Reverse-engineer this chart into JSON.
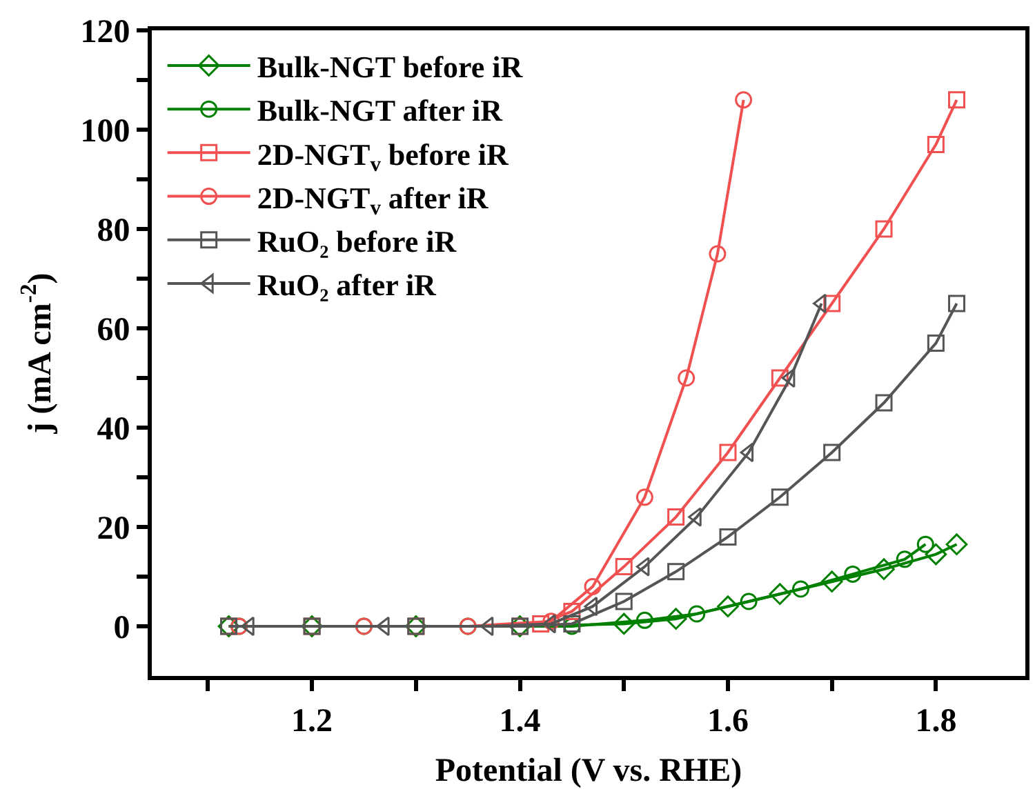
{
  "chart_data": {
    "type": "line",
    "xlabel": "Potential (V vs. RHE)",
    "ylabel": "j (mA cm$^{-2}$)",
    "xlim": [
      1.046,
      1.886
    ],
    "xticks": [
      {
        "value": 1.1,
        "label": null
      },
      1.2,
      {
        "value": 1.3,
        "label": null
      },
      1.4,
      {
        "value": 1.5,
        "label": null
      },
      1.6,
      {
        "value": 1.7,
        "label": null
      },
      1.8
    ],
    "ylim": [
      -10,
      120
    ],
    "yticks": [
      0,
      {
        "value": 10,
        "label": null
      },
      20,
      {
        "value": 30,
        "label": null
      },
      40,
      {
        "value": 50,
        "label": null
      },
      60,
      {
        "value": 70,
        "label": null
      },
      80,
      {
        "value": 90,
        "label": null
      },
      100,
      {
        "value": 110,
        "label": null
      },
      120
    ],
    "legend": "top left",
    "line_style": "solid",
    "series": [
      {
        "name": "Bulk-NGT before iR",
        "color": "#008000",
        "marker": "diamond",
        "x": [
          1.12,
          1.2,
          1.3,
          1.4,
          1.5,
          1.55,
          1.6,
          1.65,
          1.7,
          1.75,
          1.8,
          1.82
        ],
        "values": [
          0,
          0,
          0,
          0,
          0.5,
          1.5,
          4,
          6.5,
          9,
          11.5,
          14.5,
          16.5
        ]
      },
      {
        "name": "Bulk-NGT after iR",
        "color": "#008000",
        "marker": "circle",
        "x": [
          1.13,
          1.25,
          1.35,
          1.45,
          1.52,
          1.57,
          1.62,
          1.67,
          1.72,
          1.77,
          1.79
        ],
        "values": [
          0,
          0,
          0,
          0,
          1.2,
          2.5,
          5,
          7.5,
          10.5,
          13.5,
          16.5
        ]
      },
      {
        "name": "2D-NGT$_{v}$ before iR",
        "color": "#f05050",
        "marker": "square",
        "x": [
          1.12,
          1.2,
          1.3,
          1.4,
          1.42,
          1.45,
          1.5,
          1.55,
          1.6,
          1.65,
          1.7,
          1.75,
          1.8,
          1.82
        ],
        "values": [
          0,
          0,
          0,
          0,
          0.5,
          3,
          12,
          22,
          35,
          50,
          65,
          80,
          97,
          106
        ]
      },
      {
        "name": "2D-NGT$_{v}$ after iR",
        "color": "#f05050",
        "marker": "circle",
        "x": [
          1.13,
          1.25,
          1.35,
          1.43,
          1.47,
          1.52,
          1.56,
          1.59,
          1.615
        ],
        "values": [
          0,
          0,
          0,
          1,
          8,
          26,
          50,
          75,
          106
        ]
      },
      {
        "name": "RuO₂ before iR",
        "color": "#555555",
        "marker": "square",
        "x": [
          1.12,
          1.2,
          1.3,
          1.4,
          1.45,
          1.5,
          1.55,
          1.6,
          1.65,
          1.7,
          1.75,
          1.8,
          1.82
        ],
        "values": [
          0,
          0,
          0,
          0,
          0.5,
          5,
          11,
          18,
          26,
          35,
          45,
          57,
          65
        ]
      },
      {
        "name": "RuO₂ after iR",
        "color": "#555555",
        "marker": "triangle",
        "x": [
          1.14,
          1.27,
          1.37,
          1.43,
          1.47,
          1.52,
          1.57,
          1.62,
          1.66,
          1.69
        ],
        "values": [
          0,
          0,
          0,
          0.5,
          4,
          12,
          22,
          35,
          50,
          65
        ]
      }
    ]
  }
}
